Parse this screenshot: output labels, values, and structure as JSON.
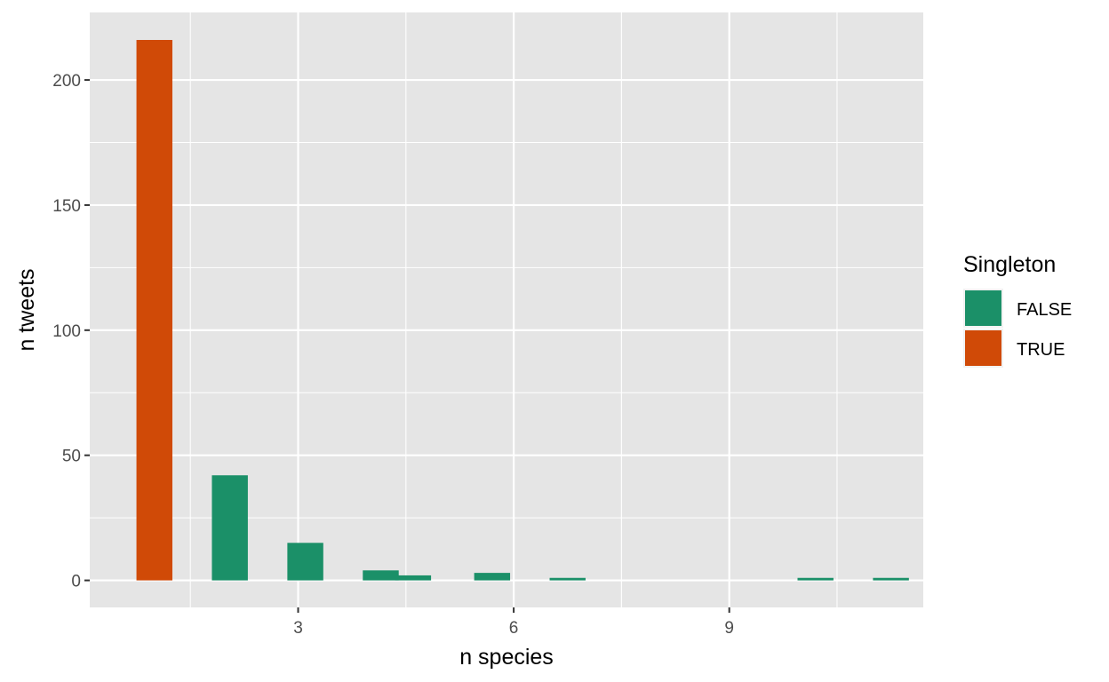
{
  "chart_data": {
    "type": "bar",
    "xlabel": "n species",
    "ylabel": "n tweets",
    "xlim": [
      0.1,
      11.7
    ],
    "ylim": [
      -10.8,
      227
    ],
    "x_breaks": [
      3,
      6,
      9
    ],
    "x_minor_breaks": [
      1.5,
      4.5,
      7.5,
      10.5
    ],
    "y_breaks": [
      0,
      50,
      100,
      150,
      200
    ],
    "y_minor_breaks": [
      25,
      75,
      125,
      175
    ],
    "bar_width": 0.5,
    "grid": true,
    "legend_position": "right",
    "legend": {
      "title": "Singleton",
      "entries": [
        {
          "label": "FALSE",
          "color": "#1b9068"
        },
        {
          "label": "TRUE",
          "color": "#d04a07"
        }
      ]
    },
    "series": [
      {
        "name": "TRUE",
        "color": "#d04a07",
        "points": [
          [
            1,
            216
          ]
        ]
      },
      {
        "name": "FALSE",
        "color": "#1b9068",
        "points": [
          [
            2.05,
            42
          ],
          [
            3.1,
            15
          ],
          [
            4.15,
            4
          ],
          [
            4.6,
            2
          ],
          [
            5.7,
            3
          ],
          [
            6.75,
            1
          ],
          [
            10.2,
            1
          ],
          [
            11.25,
            1
          ]
        ]
      }
    ]
  },
  "colors": {
    "panel_background": "#e5e5e5",
    "grid": "#ffffff",
    "tick": "#333333"
  }
}
